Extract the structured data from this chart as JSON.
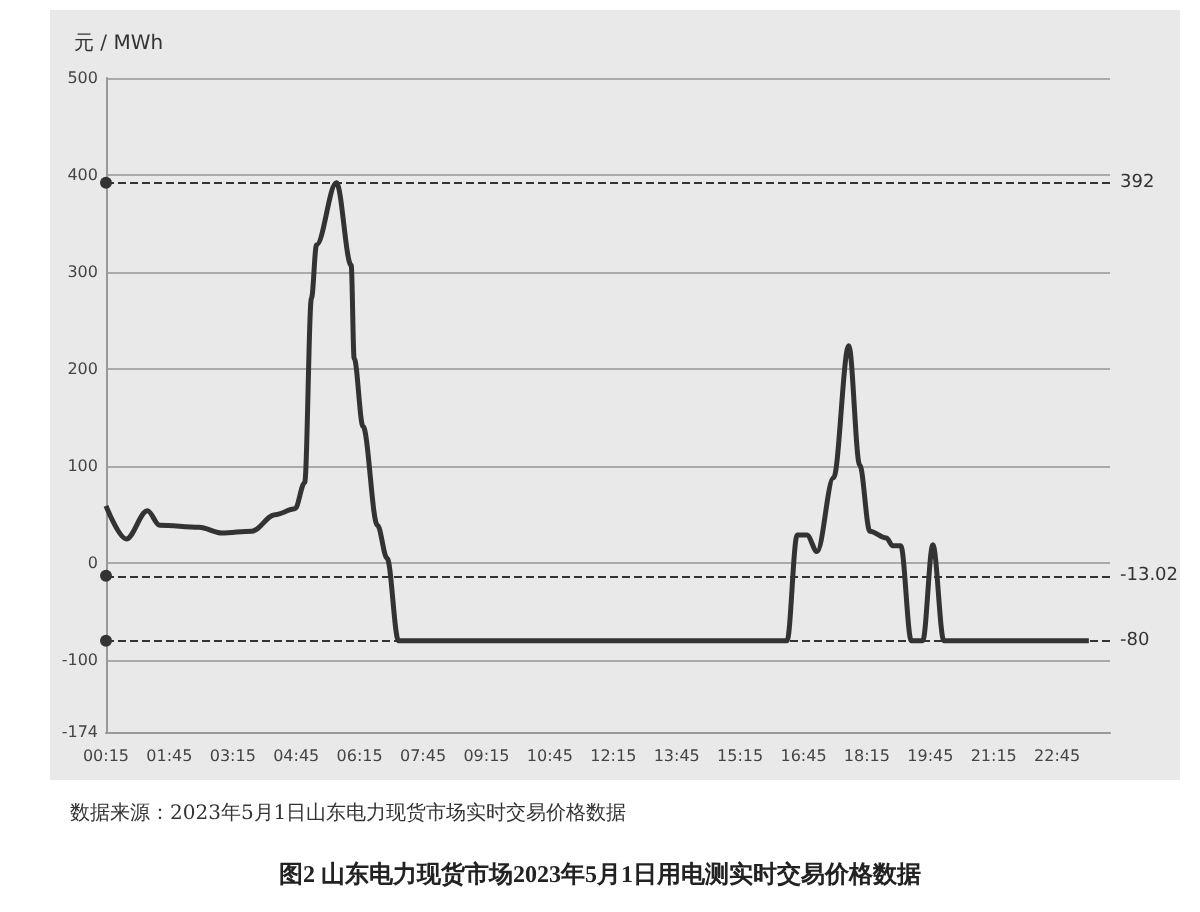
{
  "chart_data": {
    "type": "line",
    "title": "图2 山东电力现货市场2023年5月1日用电测实时交易价格数据",
    "ylabel": "元 / MWh",
    "annotations": [
      "数据来源：2023年5月1日山东电力现货市场实时交易价格数据"
    ],
    "series": [
      {
        "color": "#333333",
        "x": [
          0.25,
          0.73,
          1.23,
          1.52,
          2.45,
          2.99,
          3.7,
          4.25,
          4.72,
          4.95,
          5.11,
          5.23,
          5.7,
          6.05,
          6.12,
          6.33,
          6.67,
          6.9,
          7.17,
          16.36,
          16.6,
          16.83,
          17.07,
          17.46,
          17.82,
          18.08,
          18.32,
          18.71,
          18.86,
          19.05,
          19.3,
          19.57,
          19.81,
          20.07,
          23.5
        ],
        "values": [
          59,
          25,
          54,
          39,
          37,
          31,
          33,
          50,
          56,
          83,
          273,
          328,
          392,
          307,
          211,
          141,
          39,
          5,
          -80,
          -80,
          29,
          29,
          12,
          88,
          224,
          101,
          33,
          26,
          18,
          18,
          -80,
          -80,
          19,
          -80,
          -80
        ]
      }
    ],
    "xlim": [
      0.25,
      24
    ],
    "xticks": [
      {
        "value": 0.25,
        "label": "00:15"
      },
      {
        "value": 1.75,
        "label": "01:45"
      },
      {
        "value": 3.25,
        "label": "03:15"
      },
      {
        "value": 4.75,
        "label": "04:45"
      },
      {
        "value": 6.25,
        "label": "06:15"
      },
      {
        "value": 7.75,
        "label": "07:45"
      },
      {
        "value": 9.25,
        "label": "09:15"
      },
      {
        "value": 10.75,
        "label": "10:45"
      },
      {
        "value": 12.25,
        "label": "12:15"
      },
      {
        "value": 13.75,
        "label": "13:45"
      },
      {
        "value": 15.25,
        "label": "15:15"
      },
      {
        "value": 16.75,
        "label": "16:45"
      },
      {
        "value": 18.25,
        "label": "18:15"
      },
      {
        "value": 19.75,
        "label": "19:45"
      },
      {
        "value": 21.25,
        "label": "21:15"
      },
      {
        "value": 22.75,
        "label": "22:45"
      }
    ],
    "ylim": [
      -174,
      500
    ],
    "yticks": [
      -174,
      -100,
      0,
      100,
      200,
      300,
      400,
      500
    ],
    "ref_lines": [
      {
        "axis": "y",
        "value": 392,
        "label": "392",
        "line_style": "dashed"
      },
      {
        "axis": "y",
        "value": -13.02,
        "label": "-13.02",
        "line_style": "dashed"
      },
      {
        "axis": "y",
        "value": -80,
        "label": "-80",
        "line_style": "dashed"
      }
    ],
    "grid": "y",
    "line_style": "solid",
    "marker": "none"
  }
}
